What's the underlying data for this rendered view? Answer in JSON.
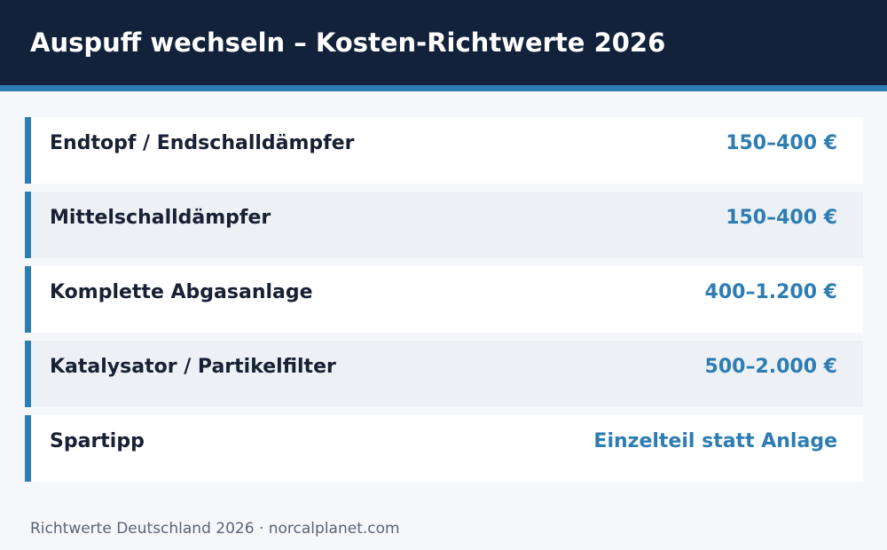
{
  "header": {
    "title": "Auspuff wechseln – Kosten-Richtwerte 2026"
  },
  "rows": [
    {
      "label": "Endtopf / Endschalldämpfer",
      "value": "150–400 €"
    },
    {
      "label": "Mittelschalldämpfer",
      "value": "150–400 €"
    },
    {
      "label": "Komplette Abgasanlage",
      "value": "400–1.200 €"
    },
    {
      "label": "Katalysator / Partikelfilter",
      "value": "500–2.000 €"
    },
    {
      "label": "Spartipp",
      "value": "Einzelteil statt Anlage"
    }
  ],
  "footer": "Richtwerte Deutschland 2026 · norcalplanet.com"
}
